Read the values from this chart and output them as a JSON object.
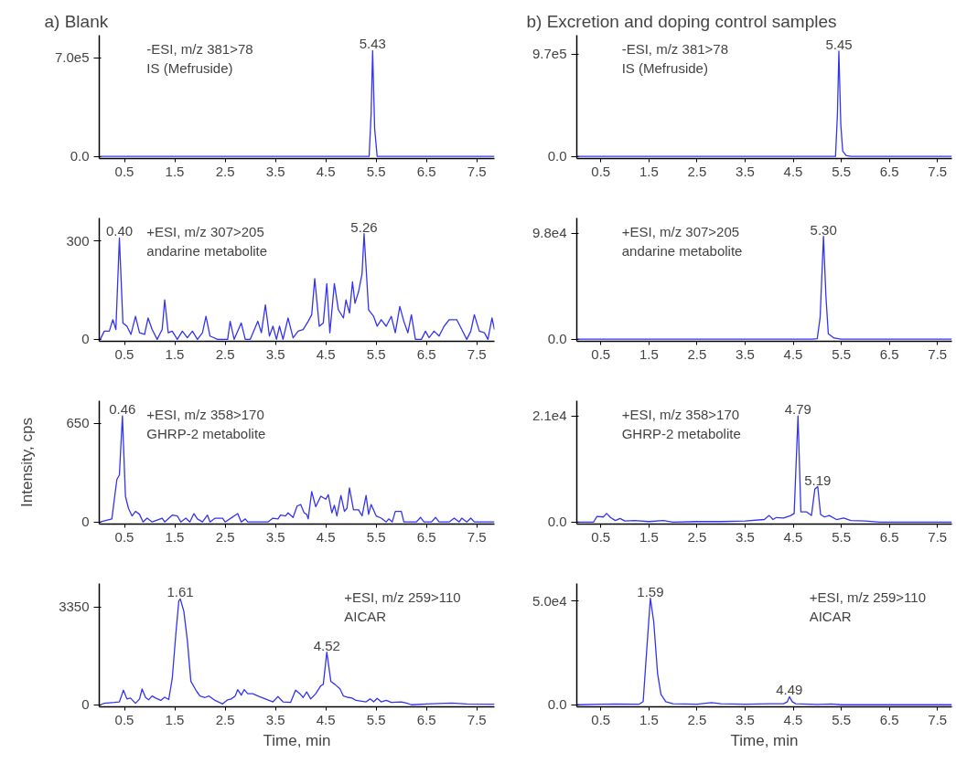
{
  "chart_data": [
    {
      "type": "line",
      "title": "a) Blank",
      "x": [
        0.02,
        1.0,
        3.0,
        5.3,
        5.36,
        5.4,
        5.43,
        5.47,
        5.52,
        6.5,
        7.85
      ],
      "series": [
        {
          "color": "#3434f0",
          "values": [
            0,
            0,
            0,
            0,
            0,
            300000,
            750000,
            200000,
            0,
            0,
            0
          ]
        }
      ],
      "xlim": [
        0.0,
        7.85
      ],
      "xticks": [
        0.5,
        1.5,
        2.5,
        3.5,
        4.5,
        5.5,
        6.5,
        7.5
      ],
      "ylim": [
        -15000,
        860000
      ],
      "yticks": [
        {
          "value": 0,
          "label": "0.0"
        },
        {
          "value": 700000,
          "label": "7.0e5"
        }
      ],
      "annotations": [
        "-ESI, m/z 381>78",
        "IS (Mefruside)",
        {
          "text": "5.43",
          "x": 5.43,
          "y": 750000
        }
      ]
    },
    {
      "type": "line",
      "title": "b) Excretion and doping control samples",
      "x": [
        0.0,
        1.0,
        3.0,
        5.38,
        5.42,
        5.45,
        5.49,
        5.53,
        5.6,
        5.7,
        7.8
      ],
      "series": [
        {
          "color": "#3434f0",
          "values": [
            0,
            0,
            0,
            0,
            400000,
            1000000,
            300000,
            50000,
            10000,
            0,
            0
          ]
        }
      ],
      "xlim": [
        0.0,
        7.8
      ],
      "xticks": [
        0.5,
        1.5,
        2.5,
        3.5,
        4.5,
        5.5,
        6.5,
        7.5
      ],
      "ylim": [
        -20000,
        1150000
      ],
      "yticks": [
        {
          "value": 0,
          "label": "0.0"
        },
        {
          "value": 970000,
          "label": "9.7e5"
        }
      ],
      "annotations": [
        "-ESI, m/z 381>78",
        "IS (Mefruside)",
        {
          "text": "5.45",
          "x": 5.45,
          "y": 1000000
        }
      ]
    },
    {
      "type": "line",
      "x": [
        0.02,
        0.1,
        0.2,
        0.27,
        0.33,
        0.4,
        0.47,
        0.55,
        0.63,
        0.72,
        0.8,
        0.9,
        0.97,
        1.05,
        1.15,
        1.25,
        1.3,
        1.37,
        1.45,
        1.55,
        1.65,
        1.75,
        1.85,
        1.95,
        2.05,
        2.12,
        2.2,
        2.35,
        2.55,
        2.6,
        2.68,
        2.82,
        2.9,
        3.0,
        3.15,
        3.22,
        3.3,
        3.38,
        3.45,
        3.52,
        3.58,
        3.65,
        3.75,
        3.85,
        3.95,
        4.05,
        4.15,
        4.22,
        4.28,
        4.37,
        4.45,
        4.52,
        4.58,
        4.67,
        4.75,
        4.85,
        4.9,
        4.97,
        5.03,
        5.08,
        5.15,
        5.22,
        5.26,
        5.35,
        5.45,
        5.52,
        5.6,
        5.7,
        5.8,
        5.88,
        5.97,
        6.05,
        6.13,
        6.2,
        6.28,
        6.4,
        6.48,
        6.55,
        6.65,
        6.75,
        6.85,
        6.95,
        7.1,
        7.2,
        7.3,
        7.38,
        7.45,
        7.55,
        7.65,
        7.72,
        7.8,
        7.85
      ],
      "series": [
        {
          "color": "#3434f0",
          "values": [
            0,
            25,
            25,
            60,
            30,
            309,
            50,
            40,
            15,
            70,
            20,
            15,
            65,
            30,
            0,
            30,
            120,
            20,
            25,
            0,
            25,
            5,
            25,
            0,
            20,
            70,
            10,
            0,
            0,
            55,
            0,
            50,
            0,
            0,
            55,
            20,
            105,
            10,
            40,
            0,
            40,
            0,
            65,
            5,
            25,
            30,
            55,
            75,
            185,
            40,
            50,
            170,
            20,
            170,
            90,
            65,
            120,
            80,
            175,
            110,
            145,
            200,
            322,
            90,
            70,
            40,
            60,
            40,
            70,
            20,
            100,
            55,
            20,
            75,
            0,
            0,
            25,
            5,
            25,
            10,
            40,
            60,
            60,
            30,
            0,
            25,
            75,
            25,
            20,
            0,
            65,
            30
          ]
        }
      ],
      "xlim": [
        0.0,
        7.85
      ],
      "xticks": [
        0.5,
        1.5,
        2.5,
        3.5,
        4.5,
        5.5,
        6.5,
        7.5
      ],
      "ylim": [
        -6,
        370
      ],
      "yticks": [
        0,
        300
      ],
      "annotations": [
        "+ESI, m/z 307>205",
        "andarine metabolite",
        {
          "text": "0.40",
          "x": 0.4,
          "y": 309
        },
        {
          "text": "5.26",
          "x": 5.26,
          "y": 322
        }
      ]
    },
    {
      "type": "line",
      "x": [
        0.0,
        3.0,
        4.9,
        5.0,
        5.06,
        5.13,
        5.18,
        5.23,
        5.35,
        5.5,
        7.8
      ],
      "series": [
        {
          "color": "#3434f0",
          "values": [
            0,
            0,
            0,
            500,
            20000,
            95000,
            40000,
            5000,
            1000,
            0,
            0
          ]
        }
      ],
      "xlim": [
        0.0,
        7.8
      ],
      "xticks": [
        0.5,
        1.5,
        2.5,
        3.5,
        4.5,
        5.5,
        6.5,
        7.5
      ],
      "ylim": [
        -2000,
        112000
      ],
      "yticks": [
        {
          "value": 0,
          "label": "0.0"
        },
        {
          "value": 98000,
          "label": "9.8e4"
        }
      ],
      "annotations": [
        "+ESI, m/z 307>205",
        "andarine metabolite",
        {
          "text": "5.30",
          "x": 5.13,
          "y": 95000
        }
      ]
    },
    {
      "type": "line",
      "ylabel": "Intensity, cps",
      "x": [
        0.02,
        0.25,
        0.35,
        0.4,
        0.46,
        0.52,
        0.58,
        0.65,
        0.72,
        0.8,
        0.87,
        0.95,
        1.05,
        1.25,
        1.3,
        1.45,
        1.55,
        1.62,
        1.72,
        1.8,
        1.88,
        1.95,
        2.05,
        2.15,
        2.2,
        2.3,
        2.45,
        2.5,
        2.75,
        2.82,
        2.9,
        2.95,
        3.35,
        3.45,
        3.55,
        3.6,
        3.7,
        3.75,
        3.85,
        3.93,
        4.0,
        4.07,
        4.12,
        4.15,
        4.22,
        4.3,
        4.4,
        4.5,
        4.55,
        4.62,
        4.67,
        4.72,
        4.8,
        4.87,
        4.92,
        4.97,
        5.05,
        5.15,
        5.22,
        5.3,
        5.35,
        5.4,
        5.5,
        5.6,
        5.7,
        5.75,
        5.82,
        5.88,
        6.0,
        6.05,
        6.3,
        6.38,
        6.45,
        6.6,
        6.68,
        6.75,
        6.95,
        7.05,
        7.15,
        7.2,
        7.3,
        7.38,
        7.45,
        7.85
      ],
      "series": [
        {
          "color": "#3434f0",
          "values": [
            0,
            20,
            280,
            310,
            699,
            170,
            90,
            40,
            70,
            50,
            0,
            25,
            0,
            25,
            0,
            45,
            40,
            0,
            25,
            0,
            55,
            20,
            0,
            45,
            0,
            25,
            25,
            0,
            55,
            0,
            20,
            0,
            0,
            25,
            20,
            45,
            40,
            60,
            30,
            105,
            115,
            60,
            50,
            20,
            200,
            100,
            170,
            150,
            180,
            60,
            110,
            40,
            175,
            70,
            90,
            225,
            80,
            80,
            40,
            175,
            50,
            115,
            40,
            25,
            0,
            20,
            0,
            70,
            70,
            0,
            0,
            30,
            0,
            0,
            30,
            0,
            0,
            25,
            0,
            25,
            0,
            25,
            0,
            0
          ]
        }
      ],
      "xlim": [
        0.0,
        7.85
      ],
      "xticks": [
        0.5,
        1.5,
        2.5,
        3.5,
        4.5,
        5.5,
        6.5,
        7.5
      ],
      "ylim": [
        -14,
        800
      ],
      "yticks": [
        0,
        650
      ],
      "annotations": [
        "+ESI, m/z 358>170",
        "GHRP-2 metabolite",
        {
          "text": "0.46",
          "x": 0.46,
          "y": 699
        }
      ]
    },
    {
      "type": "line",
      "x": [
        0.0,
        0.35,
        0.42,
        0.55,
        0.62,
        0.7,
        0.8,
        0.9,
        1.0,
        1.2,
        1.5,
        1.8,
        2.0,
        2.5,
        3.0,
        3.5,
        3.9,
        4.0,
        4.08,
        4.15,
        4.3,
        4.45,
        4.52,
        4.6,
        4.66,
        4.72,
        4.78,
        4.88,
        4.95,
        5.01,
        5.07,
        5.15,
        5.25,
        5.4,
        5.55,
        5.7,
        6.0,
        6.3,
        7.8
      ],
      "series": [
        {
          "color": "#3434f0",
          "values": [
            0,
            0,
            1100,
            1000,
            1700,
            900,
            300,
            700,
            200,
            300,
            100,
            300,
            0,
            100,
            100,
            200,
            500,
            1300,
            500,
            900,
            800,
            1300,
            1700,
            21000,
            2000,
            2000,
            2000,
            1300,
            6500,
            7000,
            1500,
            1000,
            1300,
            500,
            800,
            300,
            200,
            0,
            0
          ]
        }
      ],
      "xlim": [
        0.0,
        7.8
      ],
      "xticks": [
        0.5,
        1.5,
        2.5,
        3.5,
        4.5,
        5.5,
        6.5,
        7.5
      ],
      "ylim": [
        -400,
        24000
      ],
      "yticks": [
        {
          "value": 0,
          "label": "0.0"
        },
        {
          "value": 21000,
          "label": "2.1e4"
        }
      ],
      "annotations": [
        "+ESI, m/z 358>170",
        "GHRP-2 metabolite",
        {
          "text": "4.79",
          "x": 4.6,
          "y": 21000
        },
        {
          "text": "5.19",
          "x": 5.01,
          "y": 7000
        }
      ]
    },
    {
      "type": "line",
      "xlabel": "Time, min",
      "x": [
        0.02,
        0.1,
        0.3,
        0.4,
        0.48,
        0.55,
        0.62,
        0.72,
        0.8,
        0.85,
        0.92,
        0.98,
        1.05,
        1.12,
        1.22,
        1.3,
        1.38,
        1.45,
        1.52,
        1.58,
        1.61,
        1.68,
        1.75,
        1.82,
        1.92,
        2.0,
        2.1,
        2.18,
        2.3,
        2.45,
        2.55,
        2.62,
        2.7,
        2.75,
        2.82,
        2.88,
        2.95,
        3.05,
        3.15,
        3.3,
        3.45,
        3.55,
        3.65,
        3.8,
        3.9,
        4.0,
        4.05,
        4.12,
        4.2,
        4.3,
        4.4,
        4.45,
        4.52,
        4.6,
        4.68,
        4.78,
        4.85,
        4.95,
        5.02,
        5.1,
        5.3,
        5.38,
        5.45,
        5.52,
        5.6,
        5.7,
        5.8,
        6.0,
        6.1,
        6.2,
        6.5,
        7.0,
        7.3,
        7.85
      ],
      "series": [
        {
          "color": "#3434f0",
          "values": [
            0,
            50,
            80,
            100,
            500,
            200,
            230,
            50,
            200,
            540,
            250,
            170,
            300,
            230,
            150,
            260,
            180,
            900,
            2400,
            3550,
            3620,
            3200,
            2200,
            800,
            500,
            300,
            250,
            300,
            150,
            30,
            170,
            200,
            300,
            520,
            330,
            520,
            380,
            380,
            300,
            200,
            100,
            280,
            100,
            80,
            500,
            350,
            250,
            440,
            200,
            380,
            650,
            700,
            1800,
            800,
            700,
            550,
            300,
            250,
            230,
            150,
            100,
            200,
            100,
            220,
            100,
            150,
            80,
            100,
            60,
            0,
            30,
            60,
            30,
            20
          ]
        }
      ],
      "xlim": [
        0.0,
        7.85
      ],
      "xticks": [
        0.5,
        1.5,
        2.5,
        3.5,
        4.5,
        5.5,
        6.5,
        7.5
      ],
      "ylim": [
        -70,
        4150
      ],
      "yticks": [
        0,
        3350
      ],
      "annotations": [
        "+ESI, m/z 259>110",
        "AICAR",
        {
          "text": "1.61",
          "x": 1.61,
          "y": 3620
        },
        {
          "text": "4.52",
          "x": 4.52,
          "y": 1800
        }
      ]
    },
    {
      "type": "line",
      "xlabel": "Time, min",
      "x": [
        0.0,
        0.5,
        0.8,
        1.3,
        1.38,
        1.45,
        1.53,
        1.6,
        1.68,
        1.75,
        1.85,
        2.0,
        2.5,
        2.8,
        3.0,
        3.5,
        4.0,
        4.3,
        4.38,
        4.42,
        4.48,
        4.55,
        5.0,
        5.3,
        5.5,
        7.8
      ],
      "series": [
        {
          "color": "#3434f0",
          "values": [
            0,
            300,
            400,
            300,
            1500,
            25000,
            51400,
            40000,
            15000,
            5000,
            1500,
            500,
            300,
            1000,
            500,
            300,
            500,
            500,
            1500,
            3900,
            1500,
            500,
            200,
            400,
            0,
            0
          ]
        }
      ],
      "xlim": [
        0.0,
        7.8
      ],
      "xticks": [
        0.5,
        1.5,
        2.5,
        3.5,
        4.5,
        5.5,
        6.5,
        7.5
      ],
      "ylim": [
        -1000,
        58500
      ],
      "yticks": [
        {
          "value": 0,
          "label": "0.0"
        },
        {
          "value": 50000,
          "label": "5.0e4"
        }
      ],
      "annotations": [
        "+ESI, m/z 259>110",
        "AICAR",
        {
          "text": "1.59",
          "x": 1.53,
          "y": 51400
        },
        {
          "text": "4.49",
          "x": 4.42,
          "y": 3900
        }
      ]
    }
  ]
}
